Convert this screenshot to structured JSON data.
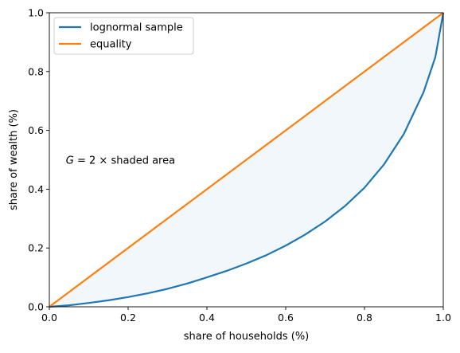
{
  "chart_data": {
    "type": "line",
    "title": "",
    "xlabel": "share of households (%)",
    "ylabel": "share of wealth (%)",
    "xlim": [
      0,
      1
    ],
    "ylim": [
      0,
      1
    ],
    "xticks": [
      "0.0",
      "0.2",
      "0.4",
      "0.6",
      "0.8",
      "1.0"
    ],
    "yticks": [
      "0.0",
      "0.2",
      "0.4",
      "0.6",
      "0.8",
      "1.0"
    ],
    "grid": false,
    "legend_position": "top-left",
    "annotation": {
      "italic_part": "G",
      "text": " = 2 ×  shaded area",
      "x": 0.04,
      "y": 0.5
    },
    "series": [
      {
        "name": "lognormal sample",
        "color": "#1f77b4",
        "x": [
          0,
          0.05,
          0.1,
          0.15,
          0.2,
          0.25,
          0.3,
          0.35,
          0.4,
          0.45,
          0.5,
          0.55,
          0.6,
          0.65,
          0.7,
          0.75,
          0.8,
          0.85,
          0.9,
          0.95,
          0.98,
          1.0
        ],
        "y": [
          0,
          0.005,
          0.013,
          0.022,
          0.033,
          0.046,
          0.061,
          0.079,
          0.1,
          0.122,
          0.147,
          0.175,
          0.208,
          0.246,
          0.29,
          0.342,
          0.405,
          0.485,
          0.588,
          0.73,
          0.85,
          1.0
        ]
      },
      {
        "name": "equality",
        "color": "#ff7f0e",
        "x": [
          0,
          1
        ],
        "y": [
          0,
          1
        ]
      }
    ],
    "shaded_region": {
      "between": [
        "equality",
        "lognormal sample"
      ],
      "color": "#1f77b4",
      "opacity": 0.06
    }
  }
}
